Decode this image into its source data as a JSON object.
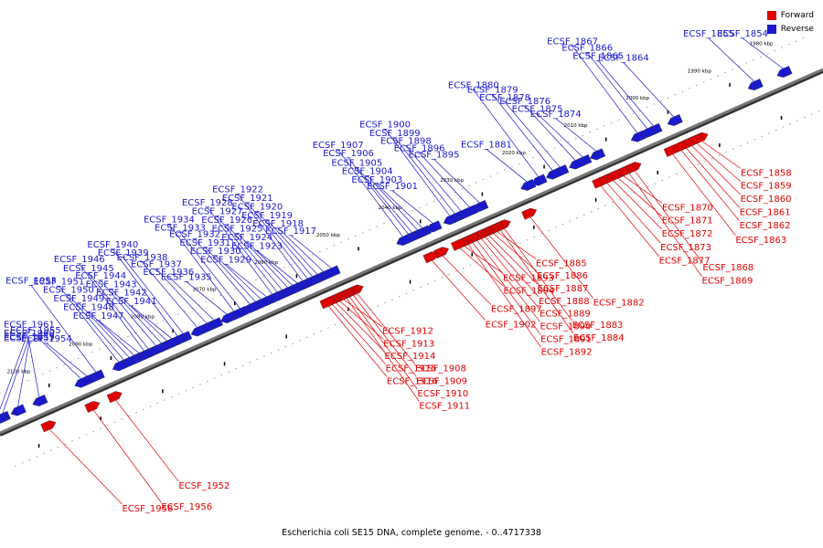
{
  "caption": "Escherichia coli SE15 DNA, complete genome. - 0..4717338",
  "legend": [
    {
      "label": "Forward",
      "color": "#e00000"
    },
    {
      "label": "Reverse",
      "color": "#1a1acc"
    }
  ],
  "colors": {
    "forward": "#e00000",
    "reverse": "#1a1acc",
    "axis": "#777777"
  },
  "kbp_marks": [
    "1980 kbp",
    "1990 kbp",
    "2000 kbp",
    "2010 kbp",
    "2020 kbp",
    "2030 kbp",
    "2040 kbp",
    "2050 kbp",
    "2060 kbp",
    "2070 kbp",
    "2080 kbp",
    "2090 kbp",
    "2100 kbp"
  ],
  "reverse_genes": [
    {
      "name": "ECSF_1854",
      "kbp": 1978.5
    },
    {
      "name": "ECSF_1855",
      "kbp": 1983.2
    },
    {
      "name": "ECSF_1864",
      "kbp": 1996.2
    },
    {
      "name": "ECSF_1865",
      "kbp": 1999.5
    },
    {
      "name": "ECSF_1866",
      "kbp": 2000.5
    },
    {
      "name": "ECSF_1867",
      "kbp": 2002.1
    },
    {
      "name": "ECSF_1874",
      "kbp": 2008.7
    },
    {
      "name": "ECSF_1875",
      "kbp": 2010.9
    },
    {
      "name": "ECSF_1876",
      "kbp": 2012.1
    },
    {
      "name": "ECSF_1878",
      "kbp": 2014.6
    },
    {
      "name": "ECSF_1879",
      "kbp": 2015.8
    },
    {
      "name": "ECSF_1880",
      "kbp": 2018.1
    },
    {
      "name": "ECSF_1881",
      "kbp": 2019.9
    },
    {
      "name": "ECSF_1895",
      "kbp": 2027.6
    },
    {
      "name": "ECSF_1896",
      "kbp": 2029.2
    },
    {
      "name": "ECSF_1898",
      "kbp": 2030.6
    },
    {
      "name": "ECSF_1899",
      "kbp": 2031.6
    },
    {
      "name": "ECSF_1900",
      "kbp": 2032.4
    },
    {
      "name": "ECSF_1901",
      "kbp": 2035.1
    },
    {
      "name": "ECSF_1903",
      "kbp": 2036.8
    },
    {
      "name": "ECSF_1904",
      "kbp": 2037.6
    },
    {
      "name": "ECSF_1905",
      "kbp": 2038.5
    },
    {
      "name": "ECSF_1906",
      "kbp": 2039.1
    },
    {
      "name": "ECSF_1907",
      "kbp": 2040.0
    },
    {
      "name": "ECSF_1917",
      "kbp": 2051.5
    },
    {
      "name": "ECSF_1918",
      "kbp": 2052.8
    },
    {
      "name": "ECSF_1919",
      "kbp": 2053.8
    },
    {
      "name": "ECSF_1920",
      "kbp": 2054.6
    },
    {
      "name": "ECSF_1921",
      "kbp": 2055.4
    },
    {
      "name": "ECSF_1922",
      "kbp": 2056.2
    },
    {
      "name": "ECSF_1923",
      "kbp": 2057.0
    },
    {
      "name": "ECSF_1924",
      "kbp": 2057.8
    },
    {
      "name": "ECSF_1925",
      "kbp": 2058.6
    },
    {
      "name": "ECSF_1926",
      "kbp": 2059.5
    },
    {
      "name": "ECSF_1927",
      "kbp": 2060.3
    },
    {
      "name": "ECSF_1928",
      "kbp": 2061.1
    },
    {
      "name": "ECSF_1929",
      "kbp": 2062.0
    },
    {
      "name": "ECSF_1930",
      "kbp": 2062.9
    },
    {
      "name": "ECSF_1931",
      "kbp": 2063.8
    },
    {
      "name": "ECSF_1932",
      "kbp": 2064.7
    },
    {
      "name": "ECSF_1933",
      "kbp": 2066.3
    },
    {
      "name": "ECSF_1934",
      "kbp": 2067.3
    },
    {
      "name": "ECSF_1935",
      "kbp": 2068.4
    },
    {
      "name": "ECSF_1936",
      "kbp": 2070.5
    },
    {
      "name": "ECSF_1937",
      "kbp": 2071.7
    },
    {
      "name": "ECSF_1938",
      "kbp": 2073.2
    },
    {
      "name": "ECSF_1939",
      "kbp": 2075.5
    },
    {
      "name": "ECSF_1940",
      "kbp": 2076.4
    },
    {
      "name": "ECSF_1941",
      "kbp": 2077.3
    },
    {
      "name": "ECSF_1942",
      "kbp": 2078.1
    },
    {
      "name": "ECSF_1943",
      "kbp": 2079.0
    },
    {
      "name": "ECSF_1944",
      "kbp": 2079.9
    },
    {
      "name": "ECSF_1945",
      "kbp": 2081.1
    },
    {
      "name": "ECSF_1946",
      "kbp": 2081.8
    },
    {
      "name": "ECSF_1947",
      "kbp": 2082.6
    },
    {
      "name": "ECSF_1948",
      "kbp": 2083.4
    },
    {
      "name": "ECSF_1949",
      "kbp": 2084.2
    },
    {
      "name": "ECSF_1950",
      "kbp": 2085.1
    },
    {
      "name": "ECSF_1951",
      "kbp": 2085.9
    },
    {
      "name": "ECSF_1953",
      "kbp": 2089.6
    },
    {
      "name": "ECSF_1954",
      "kbp": 2091.0
    },
    {
      "name": "ECSF_1955",
      "kbp": 2092.0
    },
    {
      "name": "ECSF_1957",
      "kbp": 2098.8
    },
    {
      "name": "ECSF_1959",
      "kbp": 2102.3
    },
    {
      "name": "ECSF_1960",
      "kbp": 2104.8
    },
    {
      "name": "ECSF_1961",
      "kbp": 2105.6
    }
  ],
  "forward_genes": [
    {
      "name": "ECSF_1858",
      "kbp": 1993.5
    },
    {
      "name": "ECSF_1859",
      "kbp": 1994.3
    },
    {
      "name": "ECSF_1860",
      "kbp": 1995.1
    },
    {
      "name": "ECSF_1861",
      "kbp": 1996.0
    },
    {
      "name": "ECSF_1862",
      "kbp": 1996.8
    },
    {
      "name": "ECSF_1863",
      "kbp": 1998.2
    },
    {
      "name": "ECSF_1868",
      "kbp": 2004.3
    },
    {
      "name": "ECSF_1869",
      "kbp": 2005.2
    },
    {
      "name": "ECSF_1870",
      "kbp": 2006.2
    },
    {
      "name": "ECSF_1871",
      "kbp": 2007.0
    },
    {
      "name": "ECSF_1872",
      "kbp": 2007.8
    },
    {
      "name": "ECSF_1873",
      "kbp": 2008.8
    },
    {
      "name": "ECSF_1877",
      "kbp": 2009.8
    },
    {
      "name": "ECSF_1882",
      "kbp": 2021.2
    },
    {
      "name": "ECSF_1883",
      "kbp": 2025.4
    },
    {
      "name": "ECSF_1884",
      "kbp": 2026.0
    },
    {
      "name": "ECSF_1885",
      "kbp": 2026.6
    },
    {
      "name": "ECSF_1886",
      "kbp": 2027.2
    },
    {
      "name": "ECSF_1887",
      "kbp": 2027.9
    },
    {
      "name": "ECSF_1888",
      "kbp": 2028.5
    },
    {
      "name": "ECSF_1889",
      "kbp": 2029.1
    },
    {
      "name": "ECSF_1890",
      "kbp": 2029.8
    },
    {
      "name": "ECSF_1891",
      "kbp": 2030.5
    },
    {
      "name": "ECSF_1892",
      "kbp": 2031.2
    },
    {
      "name": "ECSF_1893",
      "kbp": 2031.9
    },
    {
      "name": "ECSF_1894",
      "kbp": 2032.6
    },
    {
      "name": "ECSF_1897",
      "kbp": 2035.4
    },
    {
      "name": "ECSF_1902",
      "kbp": 2037.1
    },
    {
      "name": "ECSF_1908",
      "kbp": 2049.2
    },
    {
      "name": "ECSF_1909",
      "kbp": 2049.8
    },
    {
      "name": "ECSF_1910",
      "kbp": 2050.4
    },
    {
      "name": "ECSF_1911",
      "kbp": 2050.9
    },
    {
      "name": "ECSF_1912",
      "kbp": 2051.4
    },
    {
      "name": "ECSF_1913",
      "kbp": 2052.0
    },
    {
      "name": "ECSF_1914",
      "kbp": 2052.6
    },
    {
      "name": "ECSF_1915",
      "kbp": 2053.2
    },
    {
      "name": "ECSF_1916",
      "kbp": 2053.8
    },
    {
      "name": "ECSF_1952",
      "kbp": 2088.2
    },
    {
      "name": "ECSF_1956",
      "kbp": 2091.8
    },
    {
      "name": "ECSF_1958",
      "kbp": 2098.9
    }
  ]
}
